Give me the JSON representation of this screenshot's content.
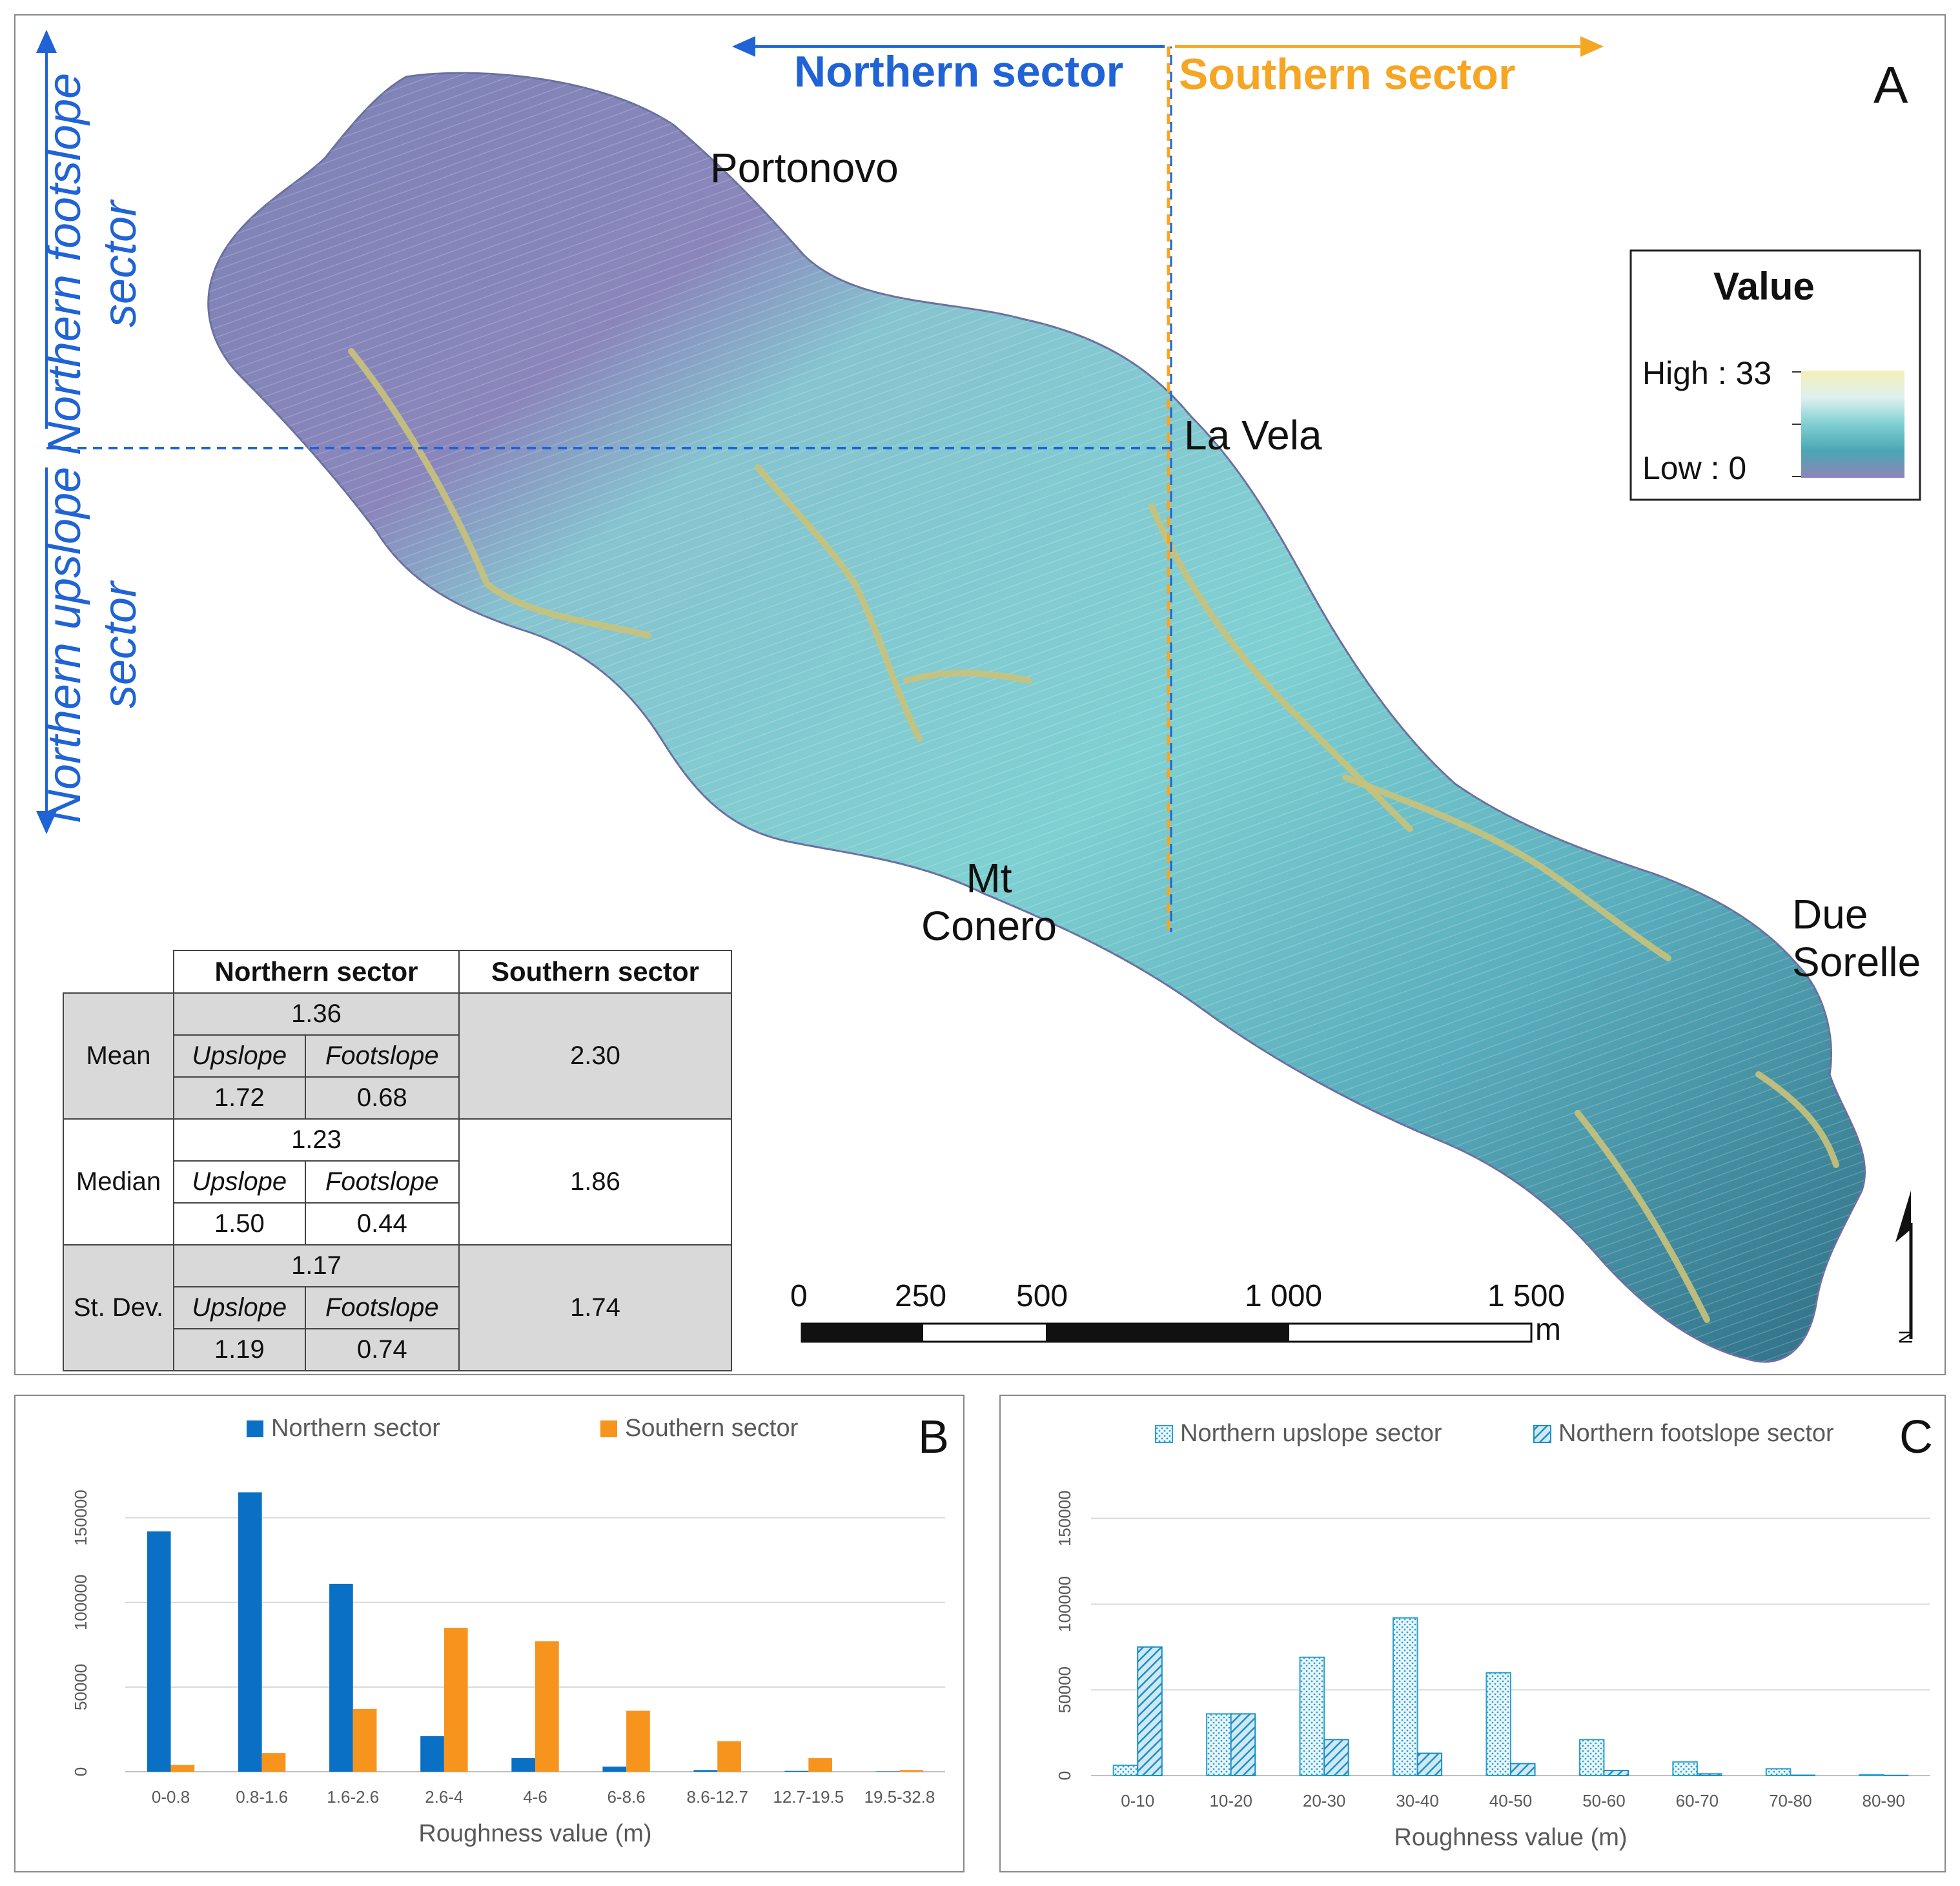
{
  "panel_a": {
    "letter": "A",
    "sector_north": "Northern sector",
    "sector_south": "Southern sector",
    "footslope_label_1": "Northern footslope",
    "footslope_label_2": "sector",
    "upslope_label_1": "Northern upslope",
    "upslope_label_2": "sector",
    "places": {
      "portonovo": "Portonovo",
      "la_vela": "La Vela",
      "mt": "Mt",
      "conero": "Conero",
      "due": "Due",
      "sorelle": "Sorelle"
    },
    "legend": {
      "title": "Value",
      "high": "High : 33",
      "low": "Low : 0",
      "colors": [
        "#f4f0b8",
        "#d4eee8",
        "#7fd0d2",
        "#4aa6b4",
        "#7a86b8",
        "#8e85b8"
      ]
    },
    "scale": {
      "ticks": [
        "0",
        "250",
        "500",
        "1 000",
        "1 500"
      ],
      "unit": "m"
    },
    "north_letter": "N",
    "colors": {
      "north": "#1f63d6",
      "south": "#f5a623"
    },
    "table": {
      "col_north": "Northern sector",
      "col_south": "Southern sector",
      "sub_up": "Upslope",
      "sub_foot": "Footslope",
      "rows": [
        {
          "label": "Mean",
          "north": "1.36",
          "up": "1.72",
          "foot": "0.68",
          "south": "2.30"
        },
        {
          "label": "Median",
          "north": "1.23",
          "up": "1.50",
          "foot": "0.44",
          "south": "1.86"
        },
        {
          "label": "St. Dev.",
          "north": "1.17",
          "up": "1.19",
          "foot": "0.74",
          "south": "1.74"
        }
      ]
    }
  },
  "chart_data": [
    {
      "type": "bar",
      "panel": "B",
      "categories": [
        "0-0.8",
        "0.8-1.6",
        "1.6-2.6",
        "2.6-4",
        "4-6",
        "6-8.6",
        "8.6-12.7",
        "12.7-19.5",
        "19.5-32.8"
      ],
      "series": [
        {
          "name": "Northern sector",
          "color": "#0a70c6",
          "values": [
            142000,
            165000,
            111000,
            21000,
            8000,
            3000,
            1000,
            500,
            200
          ]
        },
        {
          "name": "Southern sector",
          "color": "#f7941d",
          "values": [
            4000,
            11000,
            37000,
            85000,
            77000,
            36000,
            18000,
            8000,
            1000
          ]
        }
      ],
      "yticks": [
        "0",
        "50000",
        "100000",
        "150000"
      ],
      "ylim": [
        0,
        180000
      ],
      "xlabel": "Roughness value (m)",
      "ylabel": "",
      "legend_position": "top",
      "grid": true
    },
    {
      "type": "bar",
      "panel": "C",
      "categories": [
        "0-10",
        "10-20",
        "20-30",
        "30-40",
        "40-50",
        "50-60",
        "60-70",
        "70-80",
        "80-90"
      ],
      "series": [
        {
          "name": "Northern upslope sector",
          "color": "#2aa0d0",
          "pattern": "dots",
          "values": [
            6000,
            36000,
            69000,
            92000,
            60000,
            21000,
            8000,
            4000,
            500
          ]
        },
        {
          "name": "Northern footslope sector",
          "color": "#1d8fc4",
          "pattern": "hatch",
          "values": [
            75000,
            36000,
            21000,
            13000,
            7000,
            3000,
            1000,
            200,
            100
          ]
        }
      ],
      "yticks": [
        "0",
        "50000",
        "100000",
        "150000"
      ],
      "ylim": [
        0,
        180000
      ],
      "xlabel": "Roughness value (m)",
      "ylabel": "",
      "legend_position": "top",
      "grid": true
    }
  ]
}
